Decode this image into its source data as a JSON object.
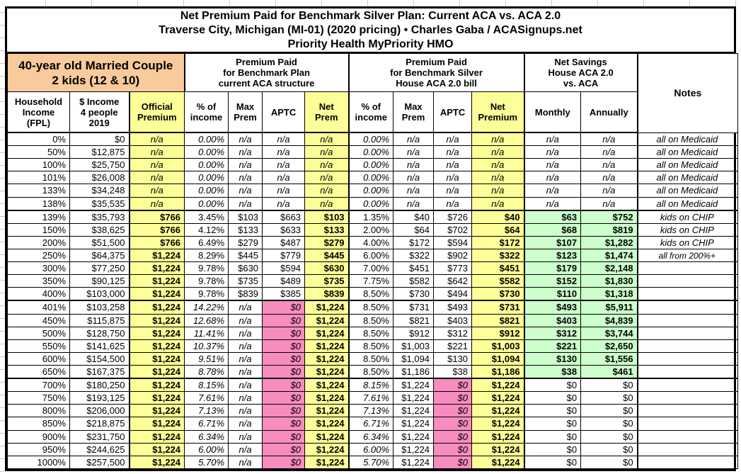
{
  "title": {
    "line1": "Net Premium Paid for Benchmark Silver Plan: Current ACA vs. ACA 2.0",
    "line2": "Traverse City, Michigan (MI-01) (2020 pricing) • Charles Gaba / ACASignups.net",
    "line3": "Priority Health MyPriority HMO"
  },
  "header": {
    "demographic": "40-year old Married Couple\n2 kids (12 & 10)",
    "group_current_aca": "Premium Paid\nfor Benchmark Plan\ncurrent ACA structure",
    "group_aca2": "Premium Paid\nfor Benchmark Silver\nHouse ACA 2.0 bill",
    "group_savings": "Net Savings\nHouse ACA 2.0\nvs. ACA",
    "notes_label": "Notes",
    "columns": [
      "Household\nIncome\n(FPL)",
      "$ Income\n4 people\n2019",
      "Official\nPremium",
      "% of\nincome",
      "Max\nPrem",
      "APTC",
      "Net\nPrem",
      "% of\nincome",
      "Max\nPrem",
      "APTC",
      "Net\nPremium",
      "Monthly",
      "Annually"
    ]
  },
  "colors": {
    "demographic_bg": "#F9CB9C",
    "highlight_yellow": "#FFFF99",
    "zero_aptc_pink": "#F78CBE",
    "savings_green": "#CCFFCC"
  },
  "rows": [
    {
      "tier": "medicaid",
      "cells": [
        "0%",
        "$0",
        "n/a",
        "0.00%",
        "n/a",
        "n/a",
        "n/a",
        "0.00%",
        "n/a",
        "n/a",
        "n/a",
        "n/a",
        "n/a",
        "all on Medicaid"
      ]
    },
    {
      "tier": "medicaid",
      "cells": [
        "50%",
        "$12,875",
        "n/a",
        "0.00%",
        "n/a",
        "n/a",
        "n/a",
        "0.00%",
        "n/a",
        "n/a",
        "n/a",
        "n/a",
        "n/a",
        "all on Medicaid"
      ]
    },
    {
      "tier": "medicaid",
      "cells": [
        "100%",
        "$25,750",
        "n/a",
        "0.00%",
        "n/a",
        "n/a",
        "n/a",
        "0.00%",
        "n/a",
        "n/a",
        "n/a",
        "n/a",
        "n/a",
        "all on Medicaid"
      ]
    },
    {
      "tier": "medicaid",
      "cells": [
        "101%",
        "$26,008",
        "n/a",
        "0.00%",
        "n/a",
        "n/a",
        "n/a",
        "0.00%",
        "n/a",
        "n/a",
        "n/a",
        "n/a",
        "n/a",
        "all on Medicaid"
      ]
    },
    {
      "tier": "medicaid",
      "cells": [
        "133%",
        "$34,248",
        "n/a",
        "0.00%",
        "n/a",
        "n/a",
        "n/a",
        "0.00%",
        "n/a",
        "n/a",
        "n/a",
        "n/a",
        "n/a",
        "all on Medicaid"
      ]
    },
    {
      "tier": "medicaid",
      "cells": [
        "138%",
        "$35,535",
        "n/a",
        "0.00%",
        "n/a",
        "n/a",
        "n/a",
        "0.00%",
        "n/a",
        "n/a",
        "n/a",
        "n/a",
        "n/a",
        "all on Medicaid"
      ]
    },
    {
      "tier": "subsidy",
      "cells": [
        "139%",
        "$35,793",
        "$766",
        "3.45%",
        "$103",
        "$663",
        "$103",
        "1.35%",
        "$40",
        "$726",
        "$40",
        "$63",
        "$752",
        "kids on CHIP"
      ]
    },
    {
      "tier": "subsidy",
      "cells": [
        "150%",
        "$38,625",
        "$766",
        "4.12%",
        "$133",
        "$633",
        "$133",
        "2.00%",
        "$64",
        "$702",
        "$64",
        "$68",
        "$819",
        "kids on CHIP"
      ]
    },
    {
      "tier": "subsidy",
      "cells": [
        "200%",
        "$51,500",
        "$766",
        "6.49%",
        "$279",
        "$487",
        "$279",
        "4.00%",
        "$172",
        "$594",
        "$172",
        "$107",
        "$1,282",
        "kids on CHIP"
      ]
    },
    {
      "tier": "subsidy",
      "cells": [
        "250%",
        "$64,375",
        "$1,224",
        "8.29%",
        "$445",
        "$779",
        "$445",
        "6.00%",
        "$322",
        "$902",
        "$322",
        "$123",
        "$1,474",
        "all from 200%+"
      ]
    },
    {
      "tier": "subsidy",
      "cells": [
        "300%",
        "$77,250",
        "$1,224",
        "9.78%",
        "$630",
        "$594",
        "$630",
        "7.00%",
        "$451",
        "$773",
        "$451",
        "$179",
        "$2,148",
        ""
      ]
    },
    {
      "tier": "subsidy",
      "cells": [
        "350%",
        "$90,125",
        "$1,224",
        "9.78%",
        "$735",
        "$489",
        "$735",
        "7.75%",
        "$582",
        "$642",
        "$582",
        "$152",
        "$1,830",
        ""
      ]
    },
    {
      "tier": "subsidy",
      "cells": [
        "400%",
        "$103,000",
        "$1,224",
        "9.78%",
        "$839",
        "$385",
        "$839",
        "8.50%",
        "$730",
        "$494",
        "$730",
        "$110",
        "$1,318",
        ""
      ]
    },
    {
      "tier": "cliff",
      "cells": [
        "401%",
        "$103,258",
        "$1,224",
        "14.22%",
        "n/a",
        "$0",
        "$1,224",
        "8.50%",
        "$731",
        "$493",
        "$731",
        "$493",
        "$5,911",
        ""
      ]
    },
    {
      "tier": "cliff",
      "cells": [
        "450%",
        "$115,875",
        "$1,224",
        "12.68%",
        "n/a",
        "$0",
        "$1,224",
        "8.50%",
        "$821",
        "$403",
        "$821",
        "$403",
        "$4,839",
        ""
      ]
    },
    {
      "tier": "cliff",
      "cells": [
        "500%",
        "$128,750",
        "$1,224",
        "11.41%",
        "n/a",
        "$0",
        "$1,224",
        "8.50%",
        "$912",
        "$312",
        "$912",
        "$312",
        "$3,744",
        ""
      ]
    },
    {
      "tier": "cliff",
      "cells": [
        "550%",
        "$141,625",
        "$1,224",
        "10.37%",
        "n/a",
        "$0",
        "$1,224",
        "8.50%",
        "$1,003",
        "$221",
        "$1,003",
        "$221",
        "$2,650",
        ""
      ]
    },
    {
      "tier": "cliff",
      "cells": [
        "600%",
        "$154,500",
        "$1,224",
        "9.51%",
        "n/a",
        "$0",
        "$1,224",
        "8.50%",
        "$1,094",
        "$130",
        "$1,094",
        "$130",
        "$1,556",
        ""
      ]
    },
    {
      "tier": "cliff",
      "cells": [
        "650%",
        "$167,375",
        "$1,224",
        "8.78%",
        "n/a",
        "$0",
        "$1,224",
        "8.50%",
        "$1,186",
        "$38",
        "$1,186",
        "$38",
        "$461",
        ""
      ]
    },
    {
      "tier": "over",
      "cells": [
        "700%",
        "$180,250",
        "$1,224",
        "8.15%",
        "n/a",
        "$0",
        "$1,224",
        "8.15%",
        "$1,224",
        "$0",
        "$1,224",
        "$0",
        "$0",
        ""
      ]
    },
    {
      "tier": "over",
      "cells": [
        "750%",
        "$193,125",
        "$1,224",
        "7.61%",
        "n/a",
        "$0",
        "$1,224",
        "7.61%",
        "$1,224",
        "$0",
        "$1,224",
        "$0",
        "$0",
        ""
      ]
    },
    {
      "tier": "over",
      "cells": [
        "800%",
        "$206,000",
        "$1,224",
        "7.13%",
        "n/a",
        "$0",
        "$1,224",
        "7.13%",
        "$1,224",
        "$0",
        "$1,224",
        "$0",
        "$0",
        ""
      ]
    },
    {
      "tier": "over",
      "cells": [
        "850%",
        "$218,875",
        "$1,224",
        "6.71%",
        "n/a",
        "$0",
        "$1,224",
        "6.71%",
        "$1,224",
        "$0",
        "$1,224",
        "$0",
        "$0",
        ""
      ]
    },
    {
      "tier": "over",
      "cells": [
        "900%",
        "$231,750",
        "$1,224",
        "6.34%",
        "n/a",
        "$0",
        "$1,224",
        "6.34%",
        "$1,224",
        "$0",
        "$1,224",
        "$0",
        "$0",
        ""
      ]
    },
    {
      "tier": "over",
      "cells": [
        "950%",
        "$244,625",
        "$1,224",
        "6.00%",
        "n/a",
        "$0",
        "$1,224",
        "6.00%",
        "$1,224",
        "$0",
        "$1,224",
        "$0",
        "$0",
        ""
      ]
    },
    {
      "tier": "over",
      "cells": [
        "1000%",
        "$257,500",
        "$1,224",
        "5.70%",
        "n/a",
        "$0",
        "$1,224",
        "5.70%",
        "$1,224",
        "$0",
        "$1,224",
        "$0",
        "$0",
        ""
      ]
    }
  ]
}
